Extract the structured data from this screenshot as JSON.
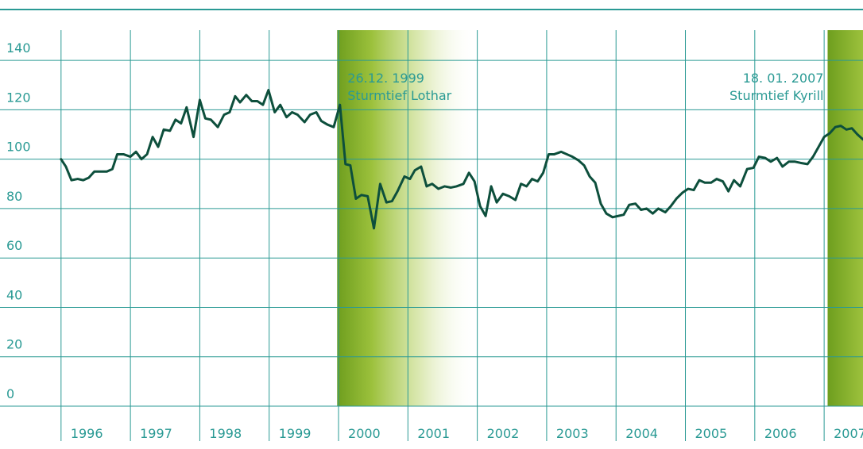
{
  "chart_data": {
    "type": "line",
    "color": "#0d4f3c",
    "grid": true,
    "xlim": [
      1995.12,
      2007.56
    ],
    "ylim": [
      0,
      150
    ],
    "xticks": [
      1996,
      1997,
      1998,
      1999,
      2000,
      2001,
      2002,
      2003,
      2004,
      2005,
      2006,
      2007
    ],
    "yticks": [
      0,
      20,
      40,
      60,
      80,
      100,
      120,
      140
    ],
    "annotations": [
      {
        "x": 1999.98,
        "lines": [
          "26.12. 1999",
          "Sturmtief Lothar"
        ],
        "anchor": "start"
      },
      {
        "x": 2007.05,
        "lines": [
          "18. 01. 2007",
          "Sturmtief Kyrill"
        ],
        "anchor": "end"
      }
    ],
    "x": [
      1996.0,
      1996.07,
      1996.15,
      1996.24,
      1996.32,
      1996.4,
      1996.48,
      1996.57,
      1996.66,
      1996.74,
      1996.81,
      1996.9,
      1997.0,
      1997.08,
      1997.16,
      1997.24,
      1997.32,
      1997.4,
      1997.48,
      1997.57,
      1997.65,
      1997.73,
      1997.81,
      1997.91,
      1998.0,
      1998.08,
      1998.16,
      1998.26,
      1998.35,
      1998.43,
      1998.51,
      1998.58,
      1998.67,
      1998.75,
      1998.83,
      1998.91,
      1998.99,
      1999.08,
      1999.16,
      1999.25,
      1999.33,
      1999.41,
      1999.51,
      1999.59,
      1999.68,
      1999.75,
      1999.84,
      1999.93,
      2000.02,
      2000.1,
      2000.17,
      2000.25,
      2000.33,
      2000.42,
      2000.51,
      2000.6,
      2000.69,
      2000.77,
      2000.85,
      2000.95,
      2001.03,
      2001.1,
      2001.19,
      2001.27,
      2001.35,
      2001.44,
      2001.53,
      2001.62,
      2001.7,
      2001.8,
      2001.88,
      2001.96,
      2002.04,
      2002.12,
      2002.2,
      2002.28,
      2002.37,
      2002.46,
      2002.55,
      2002.63,
      2002.71,
      2002.79,
      2002.87,
      2002.95,
      2003.03,
      2003.11,
      2003.21,
      2003.29,
      2003.37,
      2003.46,
      2003.54,
      2003.62,
      2003.7,
      2003.78,
      2003.86,
      2003.95,
      2004.03,
      2004.11,
      2004.19,
      2004.28,
      2004.36,
      2004.44,
      2004.53,
      2004.61,
      2004.71,
      2004.79,
      2004.87,
      2004.96,
      2005.04,
      2005.12,
      2005.2,
      2005.28,
      2005.37,
      2005.45,
      2005.54,
      2005.62,
      2005.7,
      2005.79,
      2005.89,
      2005.98,
      2006.06,
      2006.15,
      2006.23,
      2006.32,
      2006.4,
      2006.49,
      2006.58,
      2006.66,
      2006.76,
      2006.84,
      2006.92,
      2007.0,
      2007.08,
      2007.16,
      2007.24,
      2007.32,
      2007.4,
      2007.48,
      2007.56
    ],
    "values": [
      100,
      97,
      91.5,
      92,
      91.5,
      92.5,
      95,
      95,
      95,
      96,
      102,
      102,
      101,
      103,
      100,
      102,
      109,
      105,
      112,
      111.5,
      116,
      114.5,
      121,
      109,
      124,
      116.5,
      116,
      113,
      118,
      119,
      125.5,
      123,
      126,
      123.5,
      123.5,
      122,
      128,
      119,
      122,
      117,
      119,
      118,
      115,
      118,
      119,
      115.5,
      114,
      113,
      122,
      98,
      97.5,
      84,
      85.5,
      85,
      72,
      90,
      82.5,
      83,
      87,
      93,
      92,
      95.5,
      97,
      89,
      90,
      88,
      89,
      88.5,
      89,
      90,
      94.5,
      91,
      81,
      77,
      89,
      82.5,
      86,
      85,
      83.5,
      90,
      89,
      92,
      91,
      94.5,
      102,
      102,
      103,
      102,
      101,
      99.5,
      97.5,
      93,
      90.5,
      82,
      78,
      76.5,
      77,
      77.5,
      81.5,
      82,
      79.5,
      80,
      78,
      80,
      78.5,
      81,
      84,
      86.5,
      88,
      87.5,
      91.5,
      90.5,
      90.5,
      92,
      91,
      87,
      91.5,
      89,
      96,
      96.5,
      101,
      100.5,
      99,
      100.5,
      97,
      99,
      99,
      98.5,
      98,
      101,
      105,
      109,
      110.5,
      113,
      113.5,
      112,
      112.5,
      110,
      108
    ]
  }
}
